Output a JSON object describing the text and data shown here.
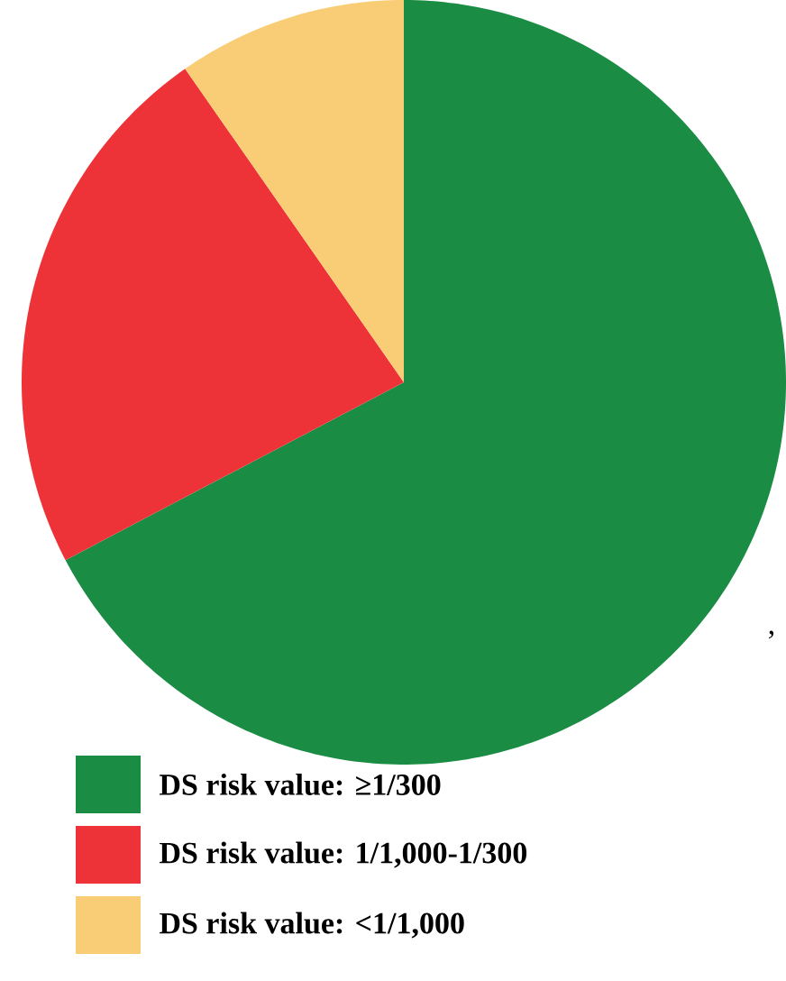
{
  "chart_data": {
    "type": "pie",
    "categories": [
      "DS risk value: ≥1/300",
      "DS risk value: 1/1,000-1/300",
      "DS risk value: <1/1,000"
    ],
    "values": [
      67.3,
      23.0,
      9.7
    ],
    "colors": [
      "#1a8c44",
      "#ee3338",
      "#f9cd75"
    ],
    "legend": "bottom",
    "annotations": [
      ","
    ]
  }
}
